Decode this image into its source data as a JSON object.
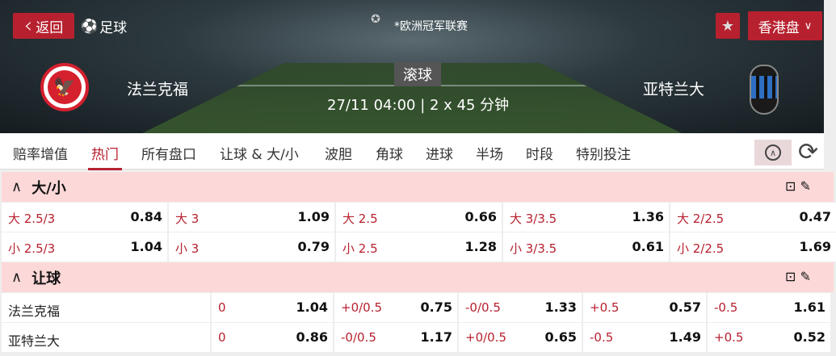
{
  "header": {
    "back_label": "返回",
    "sport_label": "足球",
    "league": "*欧洲冠军联赛",
    "odds_format": "香港盘",
    "status": "滚球",
    "home_team": "法兰克福",
    "away_team": "亚特兰大",
    "datetime": "27/11 04:00",
    "duration": "2 x 45 分钟",
    "accent_color": "#b7212f"
  },
  "tabs": [
    {
      "label": "赔率增值"
    },
    {
      "label": "热门"
    },
    {
      "label": "所有盘口"
    },
    {
      "label": "让球 & 大/小"
    },
    {
      "label": "波胆"
    },
    {
      "label": "角球"
    },
    {
      "label": "进球"
    },
    {
      "label": "半场"
    },
    {
      "label": "时段"
    },
    {
      "label": "特别投注"
    }
  ],
  "active_tab": "热门",
  "over_under": {
    "title": "大/小",
    "rows": [
      [
        {
          "l": "大 2.5/3",
          "v": "0.84"
        },
        {
          "l": "大 3",
          "v": "1.09"
        },
        {
          "l": "大 2.5",
          "v": "0.66"
        },
        {
          "l": "大 3/3.5",
          "v": "1.36"
        },
        {
          "l": "大 2/2.5",
          "v": "0.47"
        }
      ],
      [
        {
          "l": "小 2.5/3",
          "v": "1.04"
        },
        {
          "l": "小 3",
          "v": "0.79"
        },
        {
          "l": "小 2.5",
          "v": "1.28"
        },
        {
          "l": "小 3/3.5",
          "v": "0.61"
        },
        {
          "l": "小 2/2.5",
          "v": "1.69"
        }
      ]
    ]
  },
  "handicap": {
    "title": "让球",
    "rows": [
      {
        "team": "法兰克福",
        "cells": [
          {
            "l": "0",
            "v": "1.04"
          },
          {
            "l": "+0/0.5",
            "v": "0.75"
          },
          {
            "l": "-0/0.5",
            "v": "1.33"
          },
          {
            "l": "+0.5",
            "v": "0.57"
          },
          {
            "l": "-0.5",
            "v": "1.61"
          }
        ]
      },
      {
        "team": "亚特兰大",
        "cells": [
          {
            "l": "0",
            "v": "0.86"
          },
          {
            "l": "-0/0.5",
            "v": "1.17"
          },
          {
            "l": "+0/0.5",
            "v": "0.65"
          },
          {
            "l": "-0.5",
            "v": "1.49"
          },
          {
            "l": "+0.5",
            "v": "0.52"
          }
        ]
      }
    ]
  }
}
